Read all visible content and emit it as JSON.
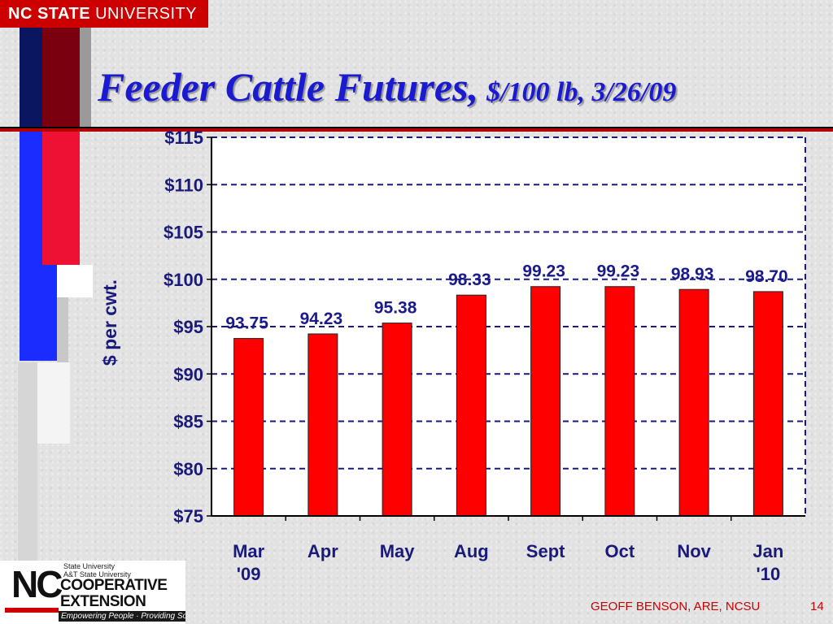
{
  "header": {
    "logo_strong": "NC STATE",
    "logo_rest": "UNIVERSITY"
  },
  "slide": {
    "title_main": "Feeder Cattle Futures,",
    "title_sub": "$/100 lb, 3/26/09"
  },
  "colors": {
    "bar": "#ff0000",
    "title": "#1a1ad0",
    "axis_text": "#1a1a7a",
    "label_text": "#1a1a8c",
    "accent_red": "#cc0000"
  },
  "chart_data": {
    "type": "bar",
    "ylabel": "$ per cwt.",
    "ylim": [
      75,
      115
    ],
    "ytick_values": [
      75,
      80,
      85,
      90,
      95,
      100,
      105,
      110,
      115
    ],
    "ytick_labels": [
      "$75",
      "$80",
      "$85",
      "$90",
      "$95",
      "$100",
      "$105",
      "$110",
      "$115"
    ],
    "grid": true,
    "categories": [
      [
        "Mar",
        "'09"
      ],
      [
        "Apr"
      ],
      [
        "May"
      ],
      [
        "Aug"
      ],
      [
        "Sept"
      ],
      [
        "Oct"
      ],
      [
        "Nov"
      ],
      [
        "Jan",
        "'10"
      ]
    ],
    "values": [
      93.75,
      94.23,
      95.38,
      98.33,
      99.23,
      99.23,
      98.93,
      98.7
    ],
    "value_labels": [
      "93.75",
      "94.23",
      "95.38",
      "98.33",
      "99.23",
      "99.23",
      "98.93",
      "98.70"
    ]
  },
  "footer": {
    "ext_nc": "NC",
    "ext_line1": "State University",
    "ext_line2": "A&T State University",
    "ext_coop": "COOPERATIVE",
    "ext_extension": "EXTENSION",
    "ext_tagline": "Empowering People · Providing Solutions",
    "credit": "GEOFF BENSON, ARE, NCSU",
    "page": "14"
  }
}
